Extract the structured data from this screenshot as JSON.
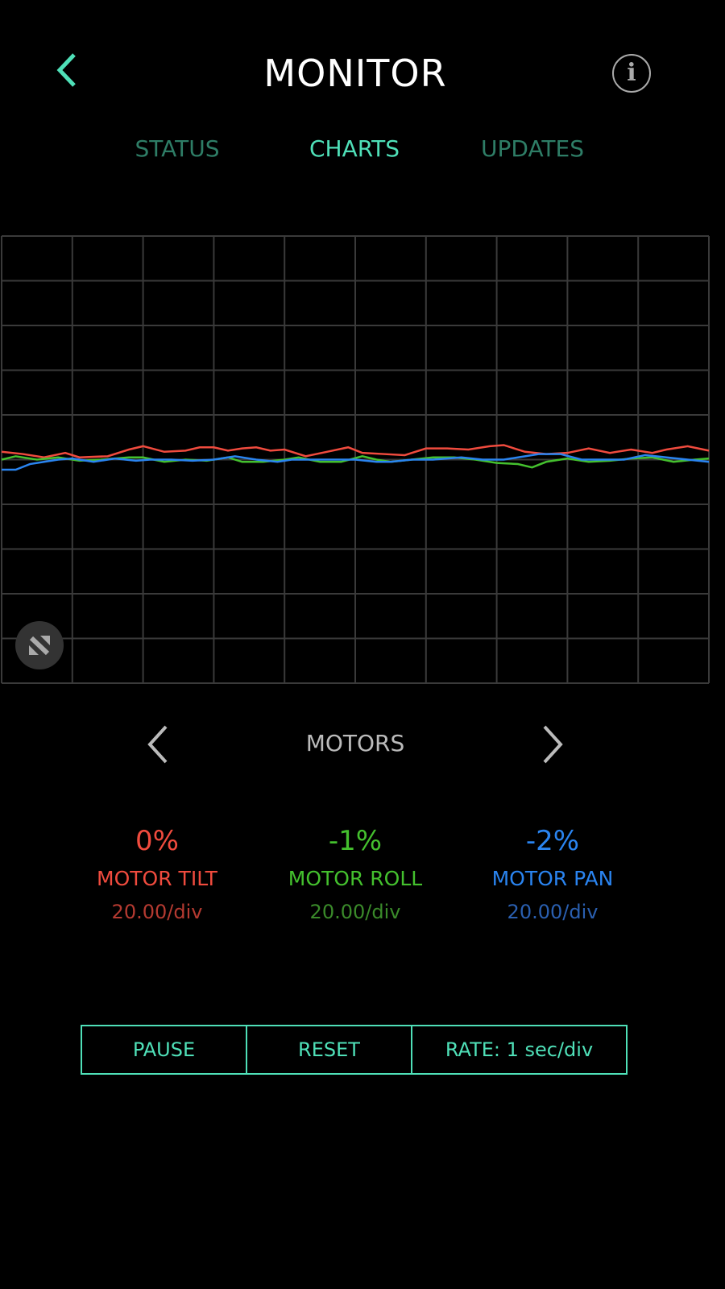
{
  "header": {
    "title": "MONITOR",
    "back_icon": "chevron-left-icon",
    "info_icon": "info-icon",
    "info_glyph": "i"
  },
  "tabs": [
    {
      "label": "STATUS",
      "active": false
    },
    {
      "label": "CHARTS",
      "active": true
    },
    {
      "label": "UPDATES",
      "active": false
    }
  ],
  "colors": {
    "accent": "#4fe0b8",
    "tilt": "#f04b3e",
    "roll": "#44c02e",
    "pan": "#2a84f0",
    "grid": "#3a3a3a"
  },
  "chart_data": {
    "type": "line",
    "grid": true,
    "x_divisions": 10,
    "y_divisions": 10,
    "xlim": [
      0,
      10
    ],
    "ylim": [
      -100,
      100
    ],
    "series": [
      {
        "name": "MOTOR TILT",
        "color": "#f04b3e",
        "x": [
          0,
          0.3,
          0.6,
          0.9,
          1.1,
          1.5,
          1.8,
          2,
          2.3,
          2.6,
          2.8,
          3,
          3.2,
          3.4,
          3.6,
          3.8,
          4,
          4.3,
          4.6,
          4.9,
          5.1,
          5.4,
          5.7,
          6,
          6.3,
          6.6,
          6.9,
          7.1,
          7.4,
          7.7,
          8,
          8.3,
          8.6,
          8.9,
          9.2,
          9.4,
          9.7,
          10
        ],
        "values": [
          3.5,
          2.5,
          1,
          3,
          1,
          1.5,
          4.5,
          6,
          3.5,
          4,
          5.5,
          5.5,
          4,
          5,
          5.5,
          4,
          4.5,
          1.5,
          3.5,
          5.5,
          3,
          2.5,
          2,
          5,
          5,
          4.5,
          6,
          6.5,
          3.5,
          2.5,
          3,
          5,
          3,
          4.5,
          3,
          4.5,
          6,
          4
        ]
      },
      {
        "name": "MOTOR ROLL",
        "color": "#44c02e",
        "x": [
          0,
          0.2,
          0.5,
          0.8,
          1.1,
          1.4,
          1.8,
          2,
          2.3,
          2.6,
          2.9,
          3.2,
          3.4,
          3.7,
          4,
          4.2,
          4.5,
          4.8,
          5.1,
          5.3,
          5.5,
          5.8,
          6.1,
          6.4,
          6.7,
          7,
          7.3,
          7.5,
          7.7,
          8,
          8.3,
          8.6,
          8.9,
          9.2,
          9.5,
          9.8,
          10
        ],
        "values": [
          0,
          1.5,
          0,
          1,
          -0.5,
          0,
          1,
          1,
          -1,
          0,
          -0.5,
          1,
          -1,
          -1,
          0,
          1,
          -1,
          -1,
          1.5,
          0,
          -1,
          0,
          1,
          1,
          0,
          -1.5,
          -2,
          -3.5,
          -1,
          0.5,
          -1,
          -0.5,
          0.5,
          1,
          -1,
          0,
          0.5
        ]
      },
      {
        "name": "MOTOR PAN",
        "color": "#2a84f0",
        "x": [
          0,
          0.2,
          0.4,
          0.6,
          0.8,
          1,
          1.3,
          1.6,
          1.9,
          2.1,
          2.4,
          2.7,
          3,
          3.3,
          3.6,
          3.9,
          4.1,
          4.4,
          4.7,
          5,
          5.3,
          5.5,
          5.8,
          6.1,
          6.5,
          6.8,
          7.1,
          7.4,
          7.6,
          7.9,
          8.2,
          8.5,
          8.8,
          9.1,
          9.4,
          9.7,
          10
        ],
        "values": [
          -4.5,
          -4.5,
          -2,
          -1,
          0,
          0.5,
          -1,
          0.5,
          -0.5,
          0,
          0,
          -0.5,
          0,
          1.5,
          0,
          -1,
          0,
          0,
          0,
          0,
          -1,
          -1,
          0,
          0,
          1,
          0,
          0,
          1.5,
          2.5,
          2.5,
          0,
          0,
          0,
          2,
          1,
          0,
          -1
        ]
      }
    ]
  },
  "expand_icon": "expand-icon",
  "group": {
    "label": "MOTORS",
    "prev_icon": "chevron-left-icon",
    "next_icon": "chevron-right-icon"
  },
  "stats": [
    {
      "value": "0%",
      "label": "MOTOR TILT",
      "scale": "20.00/div",
      "color": "#f04b3e",
      "sub_color": "#b53a31"
    },
    {
      "value": "-1%",
      "label": "MOTOR ROLL",
      "scale": "20.00/div",
      "color": "#44c02e",
      "sub_color": "#3a8a2a"
    },
    {
      "value": "-2%",
      "label": "MOTOR PAN",
      "scale": "20.00/div",
      "color": "#2a84f0",
      "sub_color": "#2a5fb0"
    }
  ],
  "buttons": {
    "pause": "PAUSE",
    "reset": "RESET",
    "rate": "RATE: 1 sec/div"
  }
}
